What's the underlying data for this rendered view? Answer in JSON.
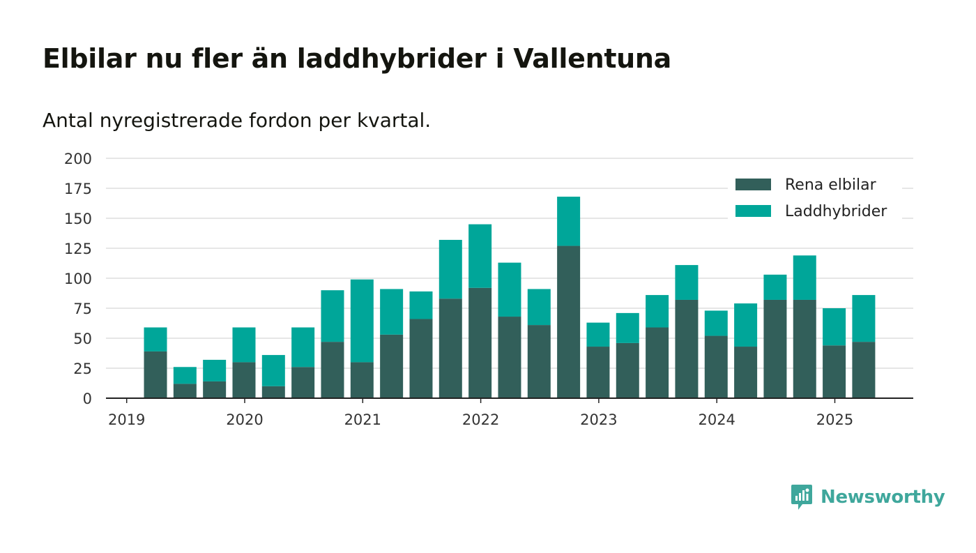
{
  "chart_data": {
    "type": "bar",
    "stacked": true,
    "title": "Elbilar nu fler än laddhybrider i Vallentuna",
    "subtitle": "Antal nyregistrerade fordon per kvartal.",
    "xlabel": "",
    "ylabel": "",
    "ylim": [
      0,
      200
    ],
    "yticks": [
      0,
      25,
      50,
      75,
      100,
      125,
      150,
      175,
      200
    ],
    "xticks": [
      "2019",
      "2020",
      "2021",
      "2022",
      "2023",
      "2024",
      "2025"
    ],
    "grid": true,
    "legend_position": "top-right",
    "categories": [
      "2019 Q2",
      "2019 Q3",
      "2019 Q4",
      "2020 Q1",
      "2020 Q2",
      "2020 Q3",
      "2020 Q4",
      "2021 Q1",
      "2021 Q2",
      "2021 Q3",
      "2021 Q4",
      "2022 Q1",
      "2022 Q2",
      "2022 Q3",
      "2022 Q4",
      "2023 Q1",
      "2023 Q2",
      "2023 Q3",
      "2023 Q4",
      "2024 Q1",
      "2024 Q2",
      "2024 Q3",
      "2024 Q4",
      "2025 Q1",
      "2025 Q2"
    ],
    "series": [
      {
        "name": "Rena elbilar",
        "color": "#325f5a",
        "values": [
          39,
          12,
          14,
          30,
          10,
          26,
          47,
          30,
          53,
          66,
          83,
          92,
          68,
          61,
          127,
          43,
          46,
          59,
          82,
          52,
          43,
          82,
          82,
          44,
          47
        ]
      },
      {
        "name": "Laddhybrider",
        "color": "#00a699",
        "values": [
          20,
          14,
          18,
          29,
          26,
          33,
          43,
          69,
          38,
          23,
          49,
          53,
          45,
          30,
          41,
          20,
          25,
          27,
          29,
          21,
          36,
          21,
          37,
          31,
          39
        ]
      }
    ]
  },
  "brand": {
    "name": "Newsworthy",
    "color": "#3fa79c",
    "icon": "newsworthy-logo-icon"
  }
}
